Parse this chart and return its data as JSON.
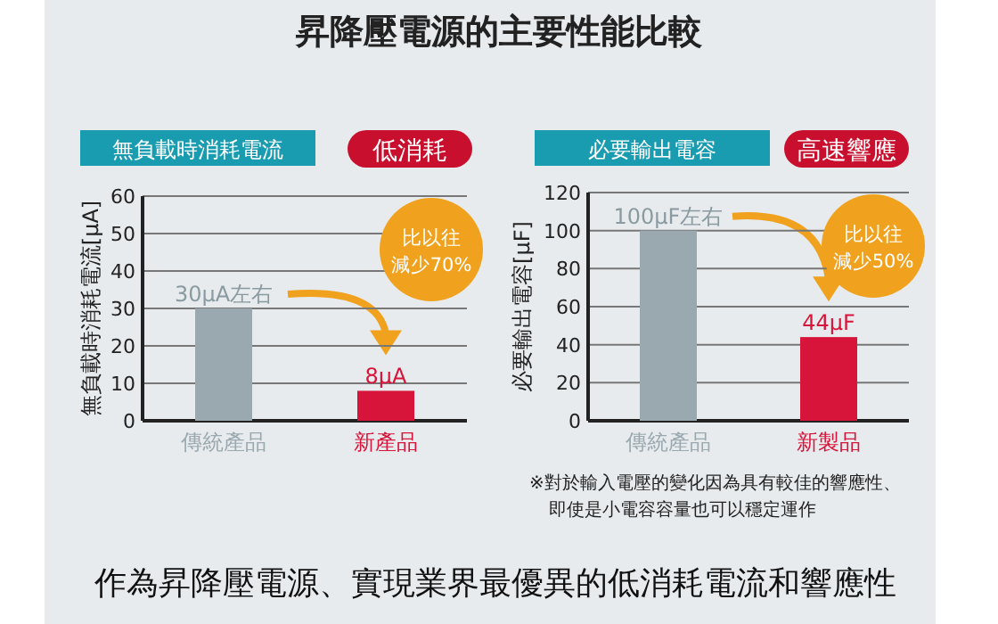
{
  "chart_data": [
    {
      "type": "bar",
      "title": "昇降壓電源的主要性能比較",
      "subtitle": "無負載時消耗電流",
      "ylabel": "無負載時消耗電流[μA]",
      "categories": [
        "傳統產品",
        "新產品"
      ],
      "values": [
        30,
        8
      ],
      "colors": [
        "#9aa9b0",
        "#d7143a"
      ],
      "value_labels": [
        "30μA左右",
        "8μA"
      ],
      "ylim": [
        0,
        60
      ],
      "yticks": [
        0,
        10,
        20,
        30,
        40,
        50,
        60
      ],
      "grid": "y",
      "annotations": [
        "低消耗",
        "比以往",
        "減少70%"
      ]
    },
    {
      "type": "bar",
      "subtitle": "必要輸出電容",
      "ylabel": "必要輸出電容[μF]",
      "categories": [
        "傳統產品",
        "新製品"
      ],
      "values": [
        100,
        44
      ],
      "colors": [
        "#9aa9b0",
        "#d7143a"
      ],
      "value_labels": [
        "100μF左右",
        "44μF"
      ],
      "ylim": [
        0,
        120
      ],
      "yticks": [
        0,
        20,
        40,
        60,
        80,
        100,
        120
      ],
      "grid": "y",
      "annotations": [
        "高速響應",
        "比以往",
        "減少50%",
        "※對於輸入電壓的變化因為具有較佳的響應性、",
        "即使是小電容容量也可以穩定運作",
        "作為昇降壓電源、實現業界最優異的低消耗電流和響應性"
      ]
    }
  ]
}
